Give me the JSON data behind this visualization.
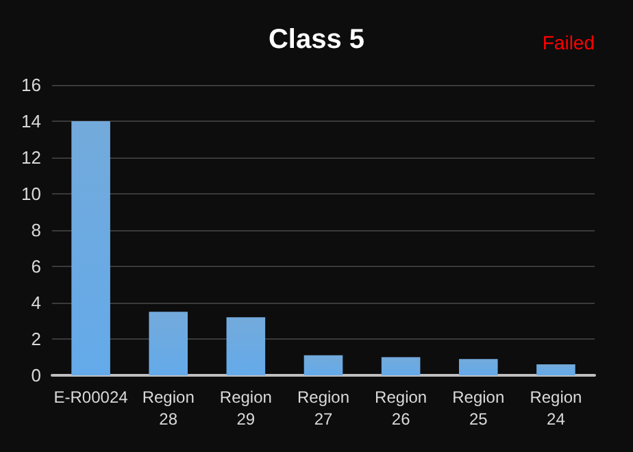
{
  "chart_data": {
    "type": "bar",
    "title": "Class 5",
    "annotations": [
      "Failed"
    ],
    "categories": [
      "E-R00024",
      "Region 28",
      "Region 29",
      "Region 27",
      "Region 26",
      "Region 25",
      "Region 24"
    ],
    "values": [
      14,
      3.5,
      3.2,
      1.1,
      1.0,
      0.9,
      0.6
    ],
    "color": "#5b9bd5",
    "ylim": [
      0,
      16
    ],
    "yticks": [
      0,
      2,
      4,
      6,
      8,
      10,
      12,
      14,
      16
    ],
    "grid": "y"
  }
}
